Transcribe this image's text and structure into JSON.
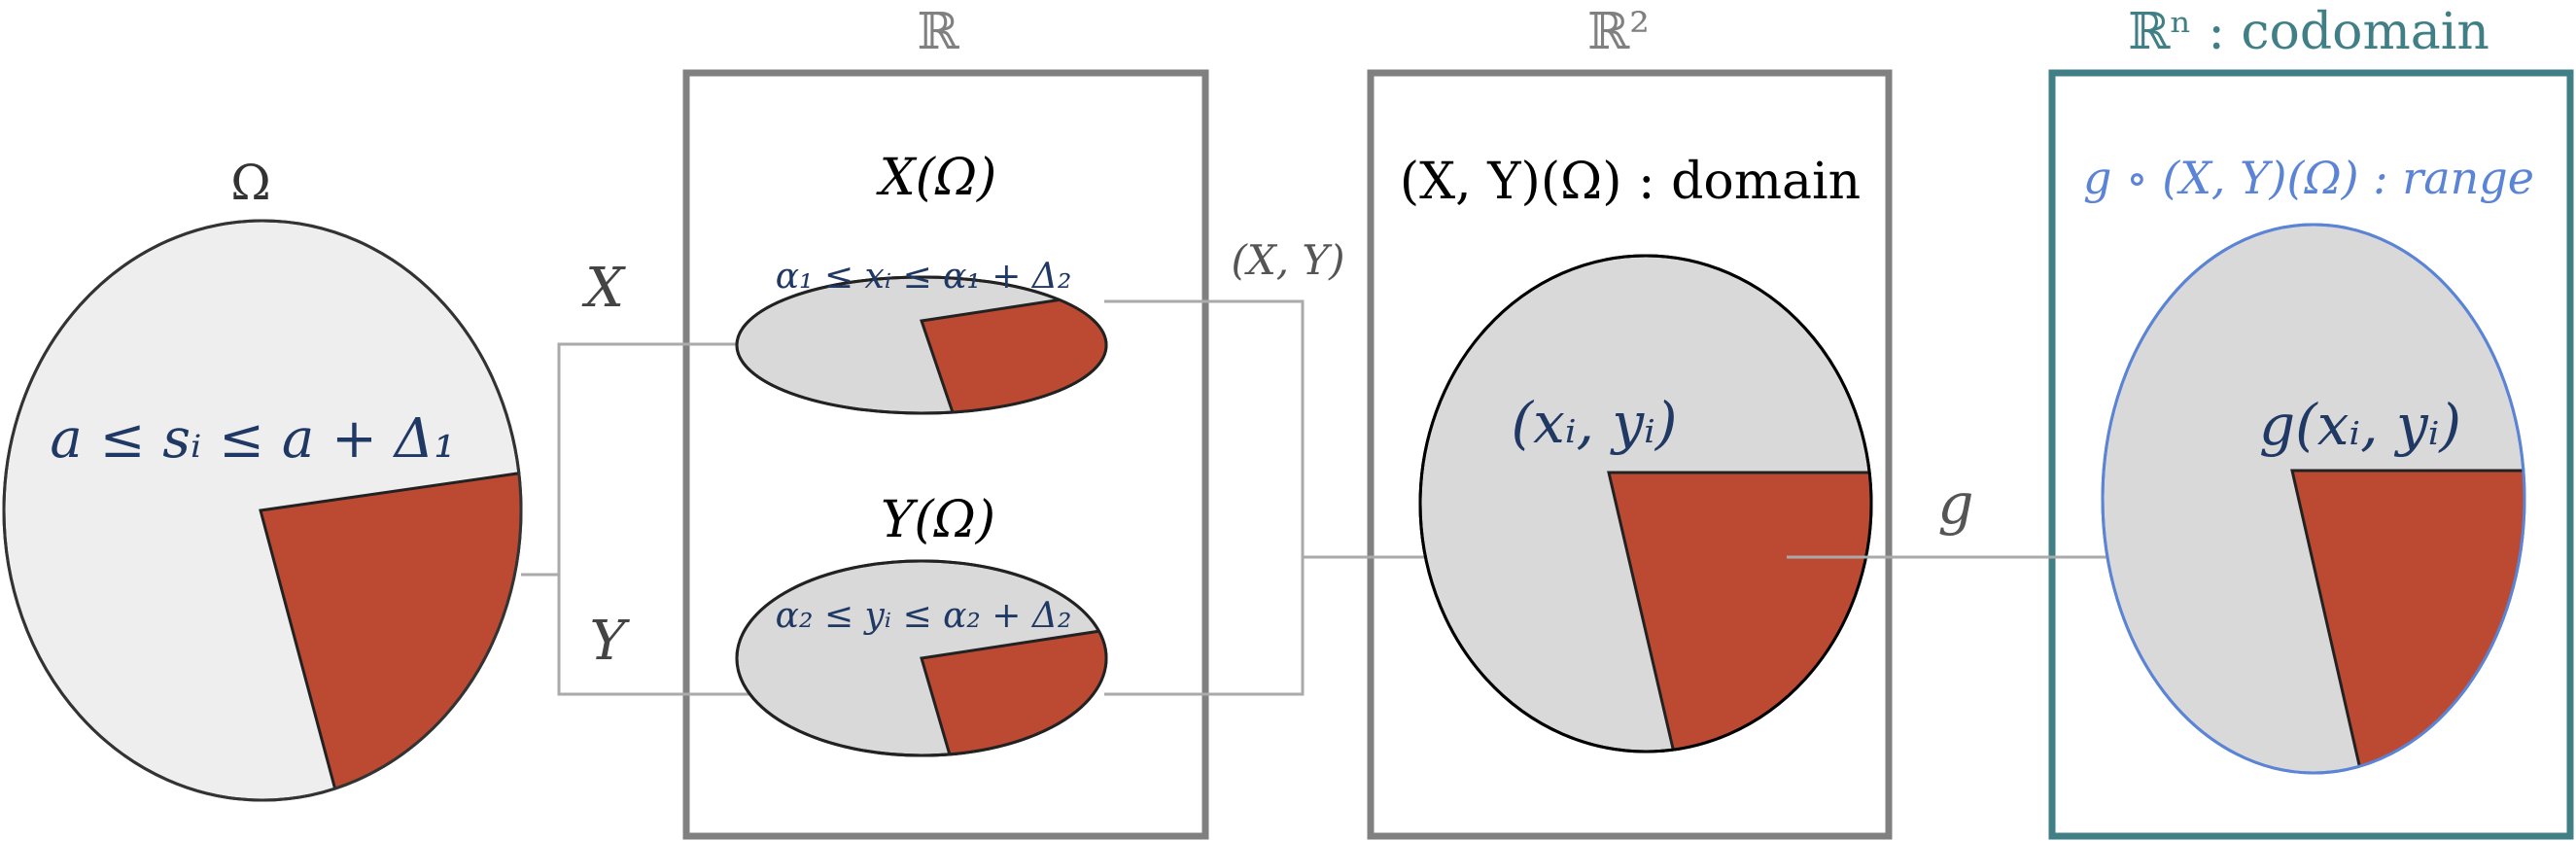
{
  "colors": {
    "panel_gray": "#808080",
    "panel_black": "#000000",
    "panel_teal": "#3f7f85",
    "ellipse_light": "#eeeeee",
    "ellipse_mid": "#d9d9d9",
    "wedge_red": "#bc4a32",
    "arrow_gray": "#aaaaaa",
    "text_navy": "#1f3864",
    "text_dark": "#333333",
    "text_gray": "#808080",
    "text_blue": "#5b84d6"
  },
  "sample_space": {
    "label": "Ω",
    "event": "a ≤ sᵢ ≤ a + Δ₁"
  },
  "map_labels": {
    "x": "X",
    "y": "Y",
    "xy": "(X, Y)",
    "g": "g"
  },
  "panel_r": {
    "header": "ℝ",
    "x_image": "X(Ω)",
    "x_interval": "α₁ ≤ xᵢ ≤ α₁ + Δ₂",
    "y_image": "Y(Ω)",
    "y_interval": "α₂ ≤ yᵢ ≤ α₂ + Δ₂"
  },
  "panel_r2": {
    "header": "ℝ²",
    "title": "(X, Y)(Ω) : domain",
    "point": "(xᵢ, yᵢ)"
  },
  "panel_rn": {
    "header": "ℝⁿ : codomain",
    "title": "g ∘ (X, Y)(Ω) : range",
    "point": "g(xᵢ, yᵢ)"
  }
}
